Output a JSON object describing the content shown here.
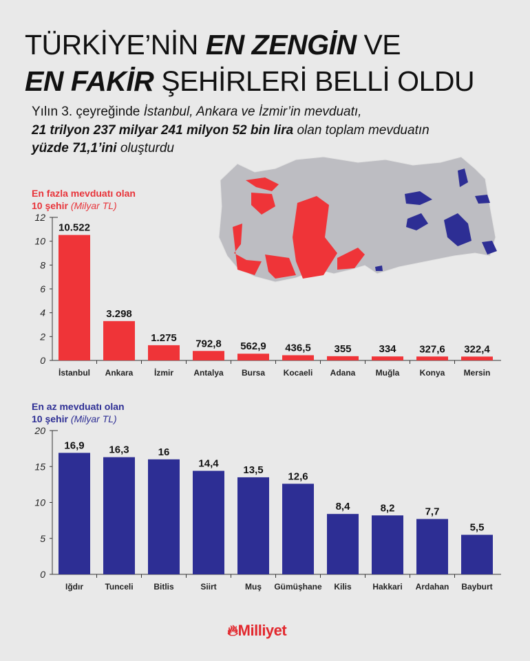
{
  "title": {
    "line1_a": "TÜRKİYE’NİN ",
    "line1_b": "EN ZENGİN",
    "line1_c": " VE",
    "line2_a": "EN FAKİR",
    "line2_b": " ŞEHİRLERİ BELLİ OLDU"
  },
  "subtitle": {
    "l1_a": "Yılın 3. çeyreğinde ",
    "l1_b": "İstanbul, Ankara ve İzmir’in mevduatı,",
    "l2_a": "21 trilyon 237 milyar 241 milyon 52 bin lira",
    "l2_b": " olan toplam mevduatın",
    "l3_a": "yüzde 71,1’ini",
    "l3_b": " oluşturdu"
  },
  "colors": {
    "top": "#ef3438",
    "bottom": "#2d2e94",
    "map_gray": "#bdbdc2",
    "background": "#e9e9e9"
  },
  "logo": {
    "text": "Milliyet",
    "icon": "flame-icon"
  },
  "chart_data": [
    {
      "type": "bar",
      "title_line1": "En fazla mevduatı olan",
      "title_line2": "10 şehir",
      "unit": "(Milyar TL)",
      "categories": [
        "İstanbul",
        "Ankara",
        "İzmir",
        "Antalya",
        "Bursa",
        "Kocaeli",
        "Adana",
        "Muğla",
        "Konya",
        "Mersin"
      ],
      "values": [
        10.522,
        3.298,
        1.275,
        0.7928,
        0.5629,
        0.4365,
        0.355,
        0.334,
        0.3276,
        0.3224
      ],
      "data_labels": [
        "10.522",
        "3.298",
        "1.275",
        "792,8",
        "562,9",
        "436,5",
        "355",
        "334",
        "327,6",
        "322,4"
      ],
      "ylim": [
        0,
        12
      ],
      "yticks": [
        "0",
        "2",
        "4",
        "6",
        "8",
        "10",
        "12"
      ],
      "grid": false,
      "color": "#ef3438"
    },
    {
      "type": "bar",
      "title_line1": "En az mevduatı olan",
      "title_line2": "10 şehir",
      "unit": "(Milyar TL)",
      "categories": [
        "Iğdır",
        "Tunceli",
        "Bitlis",
        "Siirt",
        "Muş",
        "Gümüşhane",
        "Kilis",
        "Hakkari",
        "Ardahan",
        "Bayburt"
      ],
      "values": [
        16.9,
        16.3,
        16,
        14.4,
        13.5,
        12.6,
        8.4,
        8.2,
        7.7,
        5.5
      ],
      "data_labels": [
        "16,9",
        "16,3",
        "16",
        "14,4",
        "13,5",
        "12,6",
        "8,4",
        "8,2",
        "7,7",
        "5,5"
      ],
      "ylim": [
        0,
        20
      ],
      "yticks": [
        "0",
        "5",
        "10",
        "15",
        "20"
      ],
      "grid": false,
      "color": "#2d2e94"
    }
  ]
}
